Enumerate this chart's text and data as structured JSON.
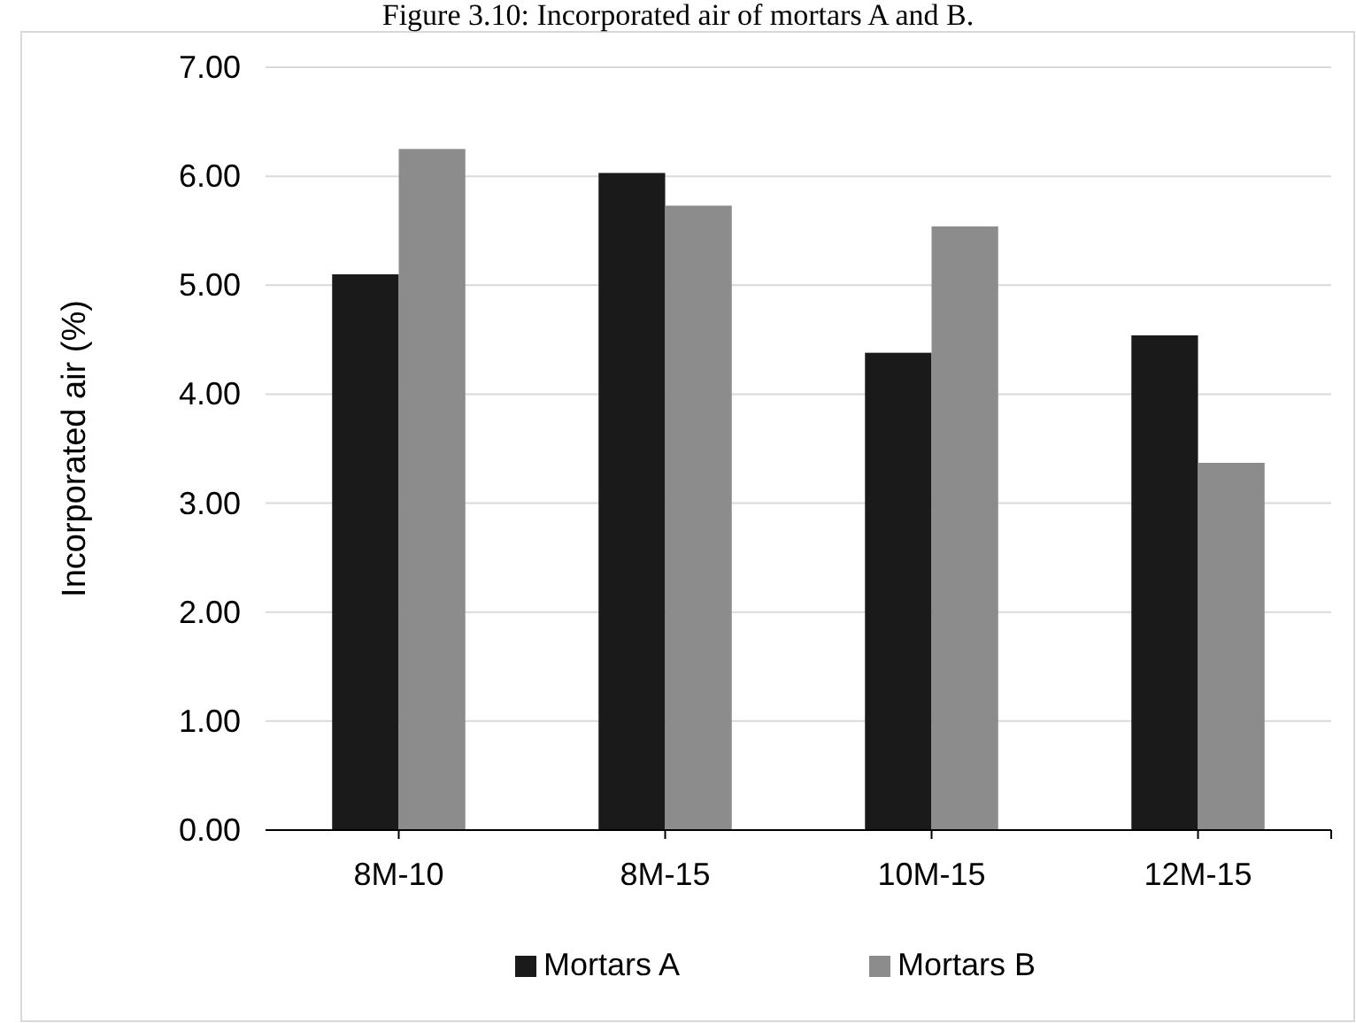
{
  "chart_data": {
    "type": "bar",
    "title": "Figure 3.10: Incorporated air of mortars A and B.",
    "ylabel": "Incorporated air (%)",
    "categories": [
      "8M-10",
      "8M-15",
      "10M-15",
      "12M-15"
    ],
    "series": [
      {
        "name": "Mortars A",
        "color": "#1a1a1a",
        "values": [
          5.1,
          6.03,
          4.38,
          4.54
        ]
      },
      {
        "name": "Mortars B",
        "color": "#8c8c8c",
        "values": [
          6.25,
          5.73,
          5.54,
          3.37
        ]
      }
    ],
    "ylim": [
      0,
      7
    ],
    "yticks": [
      {
        "value": 0,
        "label": "0.00"
      },
      {
        "value": 1,
        "label": "1.00"
      },
      {
        "value": 2,
        "label": "2.00"
      },
      {
        "value": 3,
        "label": "3.00"
      },
      {
        "value": 4,
        "label": "4.00"
      },
      {
        "value": 5,
        "label": "5.00"
      },
      {
        "value": 6,
        "label": "6.00"
      },
      {
        "value": 7,
        "label": "7.00"
      }
    ],
    "grid": "y",
    "legend": "bottom"
  }
}
